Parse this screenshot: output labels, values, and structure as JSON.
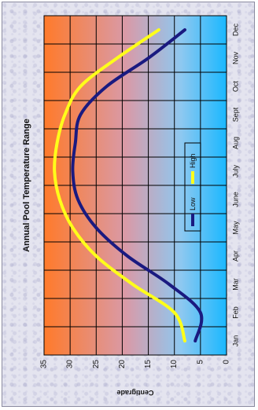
{
  "chart_data": {
    "type": "line",
    "title": "Annual Pool Temperature Range",
    "ylabel": "Centigrade",
    "xlabel": "",
    "categories": [
      "Jan",
      "Feb",
      "Mar",
      "Apr",
      "May",
      "June",
      "July",
      "Aug",
      "Sept",
      "Oct",
      "Nov",
      "Dec"
    ],
    "ylim": [
      0,
      35
    ],
    "yticks": [
      0,
      5,
      10,
      15,
      20,
      25,
      30,
      35
    ],
    "grid": true,
    "legend_position": "center",
    "orientation": "rotated",
    "series": [
      {
        "name": "High",
        "color": "#ffff1a",
        "values": [
          8,
          10,
          18,
          25,
          29.5,
          32,
          33,
          32.5,
          31,
          28,
          21,
          13
        ]
      },
      {
        "name": "Low",
        "color": "#1a1a80",
        "values": [
          6,
          5,
          11,
          19,
          25,
          28.5,
          29.5,
          29,
          28,
          23,
          15,
          8
        ]
      }
    ]
  }
}
